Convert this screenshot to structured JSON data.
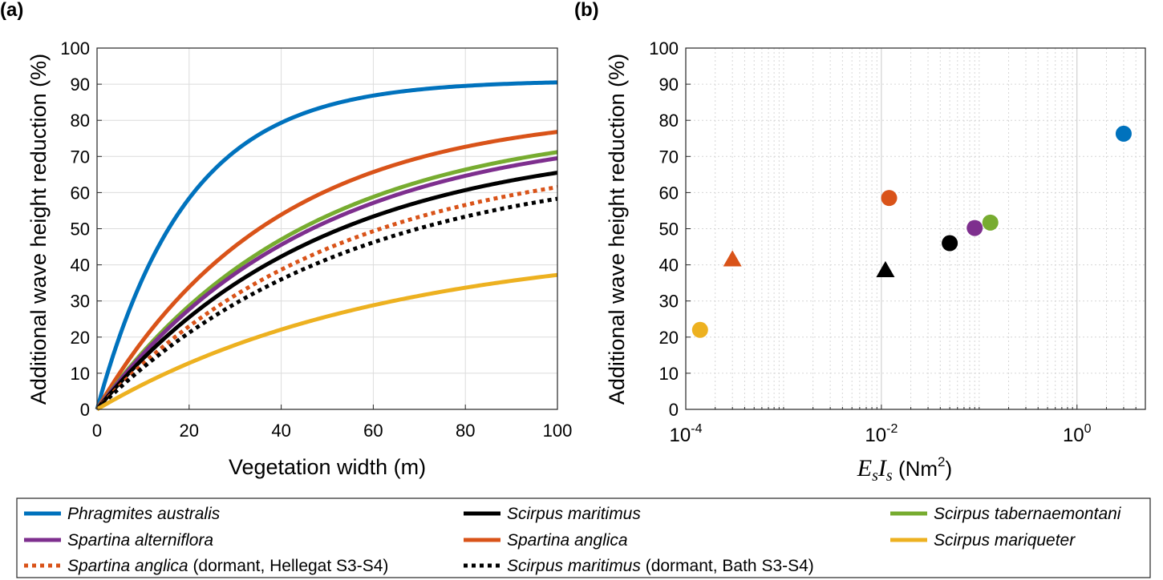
{
  "figure": {
    "panel_a_label": "(a)",
    "panel_b_label": "(b)"
  },
  "chart_data": [
    {
      "type": "line",
      "panel": "(a)",
      "xlabel": "Vegetation width (m)",
      "ylabel": "Additional wave height reduction (%)",
      "xlim": [
        0,
        100
      ],
      "ylim": [
        0,
        100
      ],
      "xticks": [
        0,
        20,
        40,
        60,
        80,
        100
      ],
      "yticks": [
        0,
        10,
        20,
        30,
        40,
        50,
        60,
        70,
        80,
        90,
        100
      ],
      "grid": true,
      "series": [
        {
          "name": "Phragmites australis",
          "color": "#0072BD",
          "style": "solid",
          "end_value": 90.5
        },
        {
          "name": "Spartina anglica",
          "color": "#D95319",
          "style": "solid",
          "end_value": 76.8
        },
        {
          "name": "Scirpus tabernaemontani",
          "color": "#77AC30",
          "style": "solid",
          "end_value": 71.2
        },
        {
          "name": "Spartina alterniflora",
          "color": "#7E2F8E",
          "style": "solid",
          "end_value": 69.5
        },
        {
          "name": "Scirpus maritimus",
          "color": "#000000",
          "style": "solid",
          "end_value": 65.5
        },
        {
          "name": "Spartina anglica (dormant, Hellegat S3-S4)",
          "color": "#D95319",
          "style": "dotted",
          "end_value": 61.5
        },
        {
          "name": "Scirpus maritimus (dormant, Bath S3-S4)",
          "color": "#000000",
          "style": "dotted",
          "end_value": 58.3
        },
        {
          "name": "Scirpus mariqueter",
          "color": "#EDB120",
          "style": "solid",
          "end_value": 37.2
        }
      ]
    },
    {
      "type": "scatter",
      "panel": "(b)",
      "xscale": "log",
      "xlabel": "EsIs (Nm2)",
      "ylabel": "Additional wave height reduction (%)",
      "xlim": [
        0.0001,
        5
      ],
      "ylim": [
        0,
        100
      ],
      "yticks": [
        0,
        10,
        20,
        30,
        40,
        50,
        60,
        70,
        80,
        90,
        100
      ],
      "grid": true,
      "points": [
        {
          "name": "Scirpus mariqueter",
          "x": 0.00014,
          "y": 22,
          "marker": "circle",
          "color": "#EDB120"
        },
        {
          "name": "Spartina anglica (dormant, Hellegat S3-S4)",
          "x": 0.0003,
          "y": 41.5,
          "marker": "triangle",
          "color": "#D95319"
        },
        {
          "name": "Spartina anglica",
          "x": 0.012,
          "y": 58.5,
          "marker": "circle",
          "color": "#D95319"
        },
        {
          "name": "Scirpus maritimus (dormant, Bath S3-S4)",
          "x": 0.011,
          "y": 38.5,
          "marker": "triangle",
          "color": "#000000"
        },
        {
          "name": "Scirpus maritimus",
          "x": 0.05,
          "y": 46,
          "marker": "circle",
          "color": "#000000"
        },
        {
          "name": "Spartina alterniflora",
          "x": 0.09,
          "y": 50.2,
          "marker": "circle",
          "color": "#7E2F8E"
        },
        {
          "name": "Scirpus tabernaemontani",
          "x": 0.13,
          "y": 51.7,
          "marker": "circle",
          "color": "#77AC30"
        },
        {
          "name": "Phragmites australis",
          "x": 3.0,
          "y": 76.3,
          "marker": "circle",
          "color": "#0072BD"
        }
      ]
    }
  ],
  "axis_b": {
    "xticks": [
      {
        "base": "10",
        "exp": "-4",
        "value": 0.0001
      },
      {
        "base": "10",
        "exp": "-2",
        "value": 0.01
      },
      {
        "base": "10",
        "exp": "0",
        "value": 1
      }
    ],
    "xlabel_E": "E",
    "xlabel_s1": "s",
    "xlabel_I": "I",
    "xlabel_s2": "s",
    "xlabel_unit": " (Nm",
    "xlabel_exp": "2",
    "xlabel_close": ")"
  },
  "legend": {
    "rows": [
      [
        {
          "species": "Phragmites australis",
          "suffix": "",
          "color": "#0072BD",
          "style": "solid"
        },
        {
          "species": "Scirpus maritimus",
          "suffix": "",
          "color": "#000000",
          "style": "solid"
        },
        {
          "species": "Scirpus tabernaemontani",
          "suffix": "",
          "color": "#77AC30",
          "style": "solid"
        }
      ],
      [
        {
          "species": "Spartina alterniflora",
          "suffix": "",
          "color": "#7E2F8E",
          "style": "solid"
        },
        {
          "species": "Spartina anglica",
          "suffix": "",
          "color": "#D95319",
          "style": "solid"
        },
        {
          "species": "Scirpus mariqueter",
          "suffix": "",
          "color": "#EDB120",
          "style": "solid"
        }
      ],
      [
        {
          "species": "Spartina anglica",
          "suffix": " (dormant, Hellegat S3-S4)",
          "color": "#D95319",
          "style": "dotted"
        },
        {
          "species": "Scirpus maritimus",
          "suffix": " (dormant, Bath S3-S4)",
          "color": "#000000",
          "style": "dotted"
        }
      ]
    ]
  }
}
